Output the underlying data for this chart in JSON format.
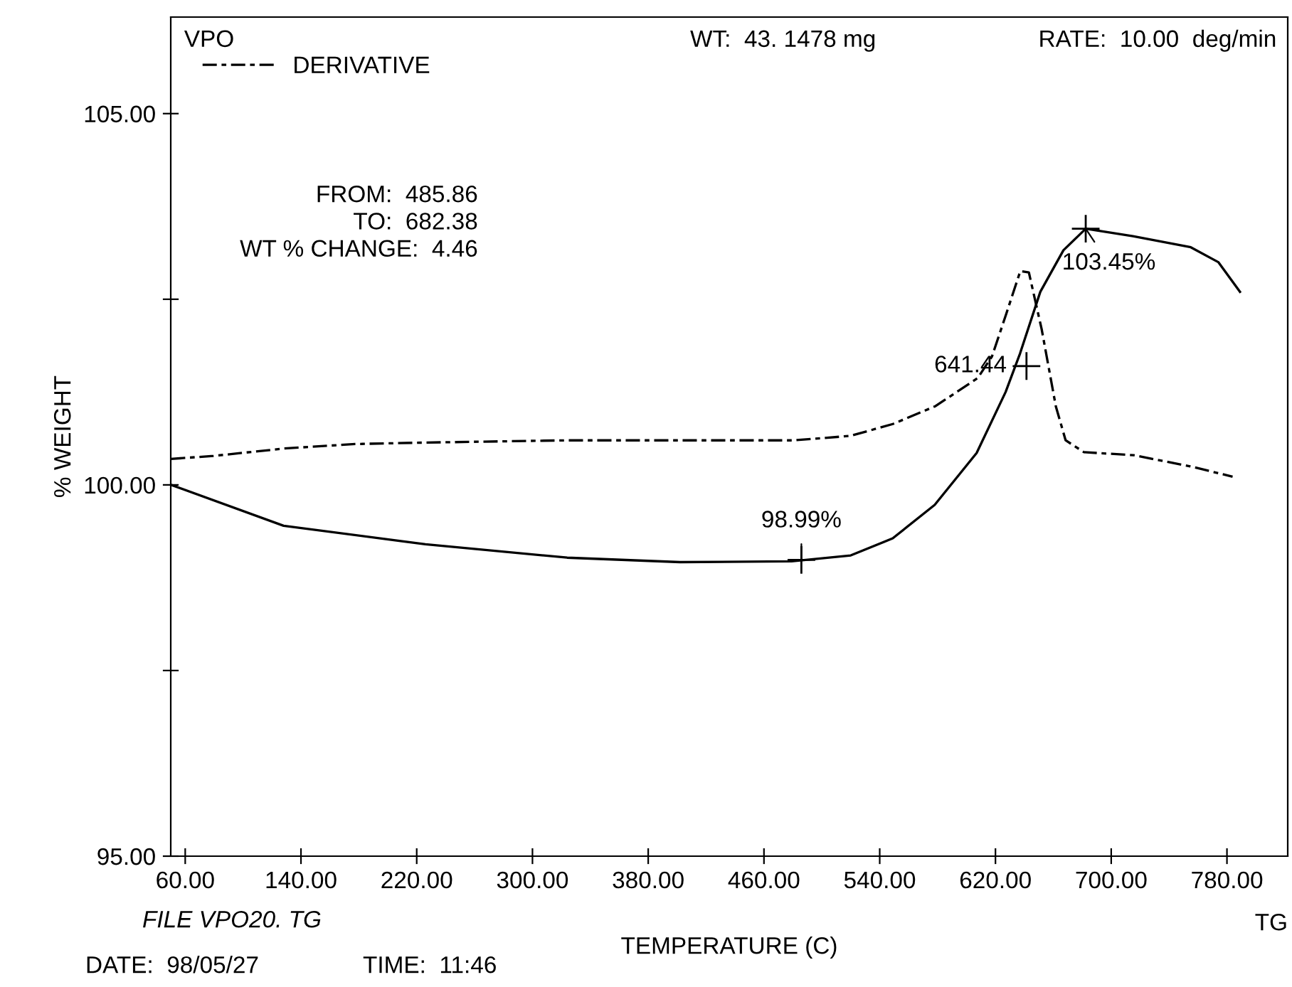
{
  "chart_data": {
    "type": "line",
    "title": "VPO",
    "xlabel": "TEMPERATURE (C)",
    "ylabel": "% WEIGHT",
    "xlim": [
      50,
      822
    ],
    "ylim": [
      95,
      106.3
    ],
    "xticks": [
      {
        "value": 60,
        "label": "60.00"
      },
      {
        "value": 140,
        "label": "140.00"
      },
      {
        "value": 220,
        "label": "220.00"
      },
      {
        "value": 300,
        "label": "300.00"
      },
      {
        "value": 380,
        "label": "380.00"
      },
      {
        "value": 460,
        "label": "460.00"
      },
      {
        "value": 540,
        "label": "540.00"
      },
      {
        "value": 620,
        "label": "620.00"
      },
      {
        "value": 700,
        "label": "700.00"
      },
      {
        "value": 780,
        "label": "780.00"
      }
    ],
    "yticks": [
      {
        "value": 95,
        "label": "95.00"
      },
      {
        "value": 97.5,
        "label": null
      },
      {
        "value": 100,
        "label": "100.00"
      },
      {
        "value": 102.5,
        "label": null
      },
      {
        "value": 105,
        "label": "105.00"
      }
    ],
    "grid": false,
    "legend": "top left",
    "series": [
      {
        "color": "#000000",
        "line_style": "solid",
        "x": [
          50.2,
          128,
          226,
          324,
          402,
          479,
          520,
          549,
          578,
          607,
          627,
          637,
          651,
          667,
          682.38,
          715,
          755,
          774,
          789
        ],
        "values": [
          100.0,
          99.45,
          99.2,
          99.02,
          98.96,
          98.97,
          99.05,
          99.28,
          99.73,
          100.43,
          101.25,
          101.77,
          102.6,
          103.16,
          103.45,
          103.35,
          103.2,
          103.0,
          102.6
        ]
      },
      {
        "name": "DERIVATIVE",
        "color": "#000000",
        "line_style": "dashed",
        "x": [
          50.2,
          79.6,
          128.5,
          177.4,
          226.3,
          324.1,
          422,
          480.7,
          519.8,
          549.1,
          578.5,
          607.8,
          617.6,
          627.4,
          637.2,
          643.1,
          651.9,
          661.7,
          668.5,
          681.2,
          715.5,
          754.6,
          783.9
        ],
        "values": [
          100.35,
          100.39,
          100.49,
          100.55,
          100.57,
          100.6,
          100.6,
          100.6,
          100.66,
          100.82,
          101.06,
          101.44,
          101.73,
          102.3,
          102.88,
          102.86,
          102.1,
          101.06,
          100.6,
          100.44,
          100.4,
          100.25,
          100.11
        ]
      }
    ],
    "annotations": [
      "WT:  43. 1478 mg",
      "RATE:  10.00  deg/min",
      "FROM:  485.86\nTO:  682.38\nWT % CHANGE:  4.46",
      "FILE VPO20. TG",
      "DATE:  98/05/27",
      "TIME:  11:46",
      "TG",
      {
        "text": "98.99%",
        "x": 485.86,
        "y": 98.99
      },
      {
        "text": "103.45%",
        "x": 682.38,
        "y": 103.45
      },
      {
        "text": "641.44",
        "x": 641.44,
        "y": 101.6
      }
    ]
  }
}
